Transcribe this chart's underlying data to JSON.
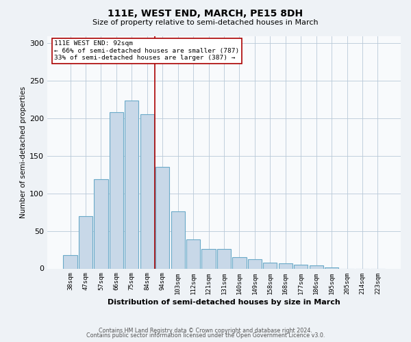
{
  "title": "111E, WEST END, MARCH, PE15 8DH",
  "subtitle": "Size of property relative to semi-detached houses in March",
  "xlabel": "Distribution of semi-detached houses by size in March",
  "ylabel": "Number of semi-detached properties",
  "bar_labels": [
    "38sqm",
    "47sqm",
    "57sqm",
    "66sqm",
    "75sqm",
    "84sqm",
    "94sqm",
    "103sqm",
    "112sqm",
    "121sqm",
    "131sqm",
    "140sqm",
    "149sqm",
    "158sqm",
    "168sqm",
    "177sqm",
    "186sqm",
    "195sqm",
    "205sqm",
    "214sqm",
    "223sqm"
  ],
  "bar_values": [
    18,
    70,
    119,
    208,
    224,
    206,
    135,
    76,
    39,
    26,
    26,
    15,
    12,
    8,
    7,
    5,
    4,
    1,
    0,
    0,
    0
  ],
  "bar_color": "#c8d8e8",
  "bar_edge_color": "#6aaac8",
  "vline_color": "#aa0000",
  "vline_pos": 5.5,
  "annotation_title": "111E WEST END: 92sqm",
  "annotation_line1": "← 66% of semi-detached houses are smaller (787)",
  "annotation_line2": "33% of semi-detached houses are larger (387) →",
  "ylim": [
    0,
    310
  ],
  "yticks": [
    0,
    50,
    100,
    150,
    200,
    250,
    300
  ],
  "footer1": "Contains HM Land Registry data © Crown copyright and database right 2024.",
  "footer2": "Contains public sector information licensed under the Open Government Licence v3.0.",
  "bg_color": "#eef2f6",
  "plot_bg_color": "#f8fafc"
}
